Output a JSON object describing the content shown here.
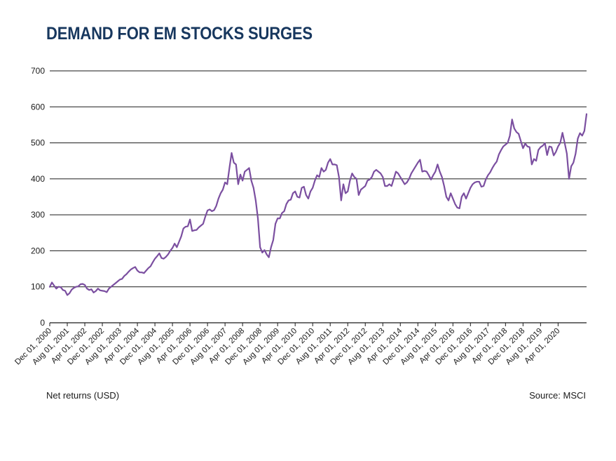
{
  "title": "DEMAND FOR EM STOCKS SURGES",
  "footnote": "Net returns (USD)",
  "source": "Source: MSCI",
  "colors": {
    "line": "#7b4fa0",
    "title": "#17375e",
    "grid": "#1a1a1a",
    "text": "#1a1a1a"
  },
  "chart_data": {
    "type": "line",
    "title": "DEMAND FOR EM STOCKS SURGES",
    "xlabel": "",
    "ylabel": "",
    "ylim": [
      0,
      700
    ],
    "yticks": [
      0,
      100,
      200,
      300,
      400,
      500,
      600,
      700
    ],
    "grid": "horizontal",
    "x_start": "Dec 01, 2000",
    "x_end": "Feb 01, 2021",
    "x_frequency": "monthly",
    "xtick_labels": [
      "Dec 01, 2000",
      "Aug 01, 2001",
      "Apr 01, 2002",
      "Dec 01, 2002",
      "Aug 01, 2003",
      "Apr 01, 2004",
      "Dec 01, 2004",
      "Aug 01, 2005",
      "Apr 01, 2006",
      "Dec 01, 2006",
      "Aug 01, 2007",
      "Apr 01, 2008",
      "Dec 01, 2008",
      "Aug 01, 2009",
      "Apr 01, 2010",
      "Dec 01, 2010",
      "Aug 01, 2011",
      "Apr 01, 2012",
      "Dec 01, 2012",
      "Aug 01, 2013",
      "Apr 01, 2014",
      "Dec 01, 2014",
      "Aug 01, 2015",
      "Apr 01, 2016",
      "Dec 01, 2016",
      "Aug 01, 2017",
      "Apr 01, 2018",
      "Dec 01, 2018",
      "Aug 01, 2019",
      "Apr 01, 2020"
    ],
    "series": [
      {
        "values": [
          100,
          112,
          103,
          95,
          100,
          99,
          91,
          89,
          77,
          82,
          92,
          97,
          100,
          101,
          107,
          108,
          105,
          95,
          91,
          93,
          84,
          88,
          95,
          90,
          89,
          88,
          85,
          95,
          100,
          105,
          110,
          115,
          120,
          122,
          130,
          135,
          142,
          148,
          152,
          155,
          145,
          140,
          140,
          138,
          145,
          152,
          157,
          168,
          178,
          185,
          193,
          180,
          178,
          183,
          190,
          200,
          208,
          220,
          210,
          225,
          240,
          262,
          267,
          268,
          287,
          255,
          257,
          258,
          265,
          270,
          275,
          295,
          312,
          315,
          310,
          313,
          325,
          345,
          360,
          370,
          390,
          385,
          430,
          472,
          445,
          440,
          385,
          412,
          395,
          420,
          425,
          430,
          395,
          375,
          340,
          290,
          210,
          195,
          202,
          190,
          182,
          210,
          230,
          275,
          290,
          290,
          305,
          310,
          330,
          340,
          342,
          360,
          365,
          350,
          348,
          375,
          378,
          355,
          345,
          365,
          375,
          395,
          410,
          405,
          430,
          420,
          425,
          445,
          455,
          440,
          440,
          438,
          405,
          340,
          385,
          360,
          365,
          395,
          415,
          405,
          400,
          355,
          370,
          375,
          380,
          395,
          398,
          405,
          420,
          425,
          420,
          415,
          405,
          380,
          380,
          385,
          380,
          400,
          420,
          415,
          405,
          395,
          385,
          390,
          400,
          415,
          425,
          435,
          445,
          453,
          420,
          422,
          420,
          410,
          398,
          410,
          420,
          440,
          420,
          405,
          380,
          350,
          340,
          360,
          345,
          330,
          320,
          318,
          350,
          360,
          345,
          360,
          375,
          385,
          390,
          392,
          392,
          378,
          380,
          398,
          410,
          418,
          430,
          440,
          448,
          468,
          480,
          490,
          495,
          500,
          520,
          565,
          540,
          530,
          525,
          505,
          485,
          498,
          490,
          488,
          440,
          455,
          450,
          480,
          488,
          492,
          499,
          466,
          490,
          488,
          465,
          475,
          490,
          500,
          528,
          500,
          470,
          400,
          435,
          445,
          470,
          512,
          527,
          520,
          533,
          580
        ]
      }
    ]
  }
}
